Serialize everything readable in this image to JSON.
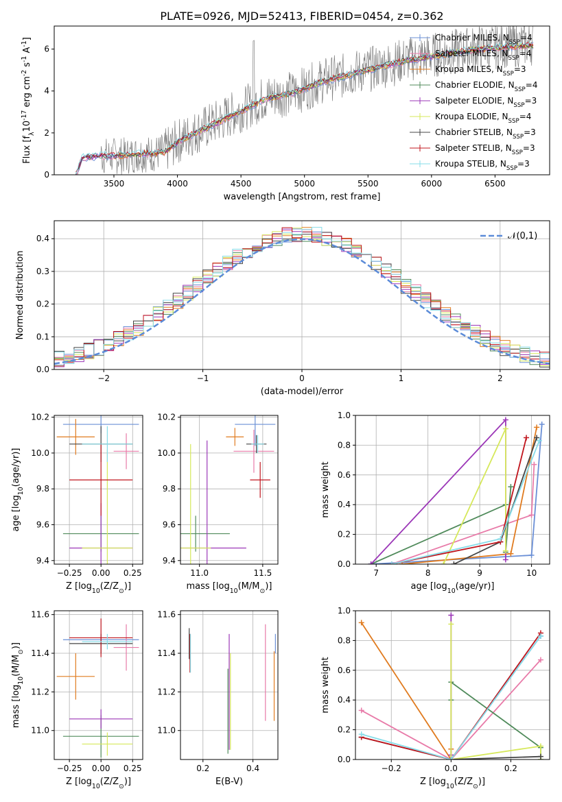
{
  "figure": {
    "title": "PLATE=0926, MJD=52413, FIBERID=0454, z=0.362"
  },
  "series": [
    {
      "name": "Chabrier MILES",
      "nssp": "4",
      "color": "#6a8fd6",
      "legend": "Chabrier MILES, N$_{SSP}$=4"
    },
    {
      "name": "Salpeter MILES",
      "nssp": "4",
      "color": "#e87aa8",
      "legend": "Salpeter MILES, N$_{SSP}$=4"
    },
    {
      "name": "Kroupa MILES",
      "nssp": "3",
      "color": "#e07b1f",
      "legend": "Kroupa MILES, N$_{SSP}$=3"
    },
    {
      "name": "Chabrier ELODIE",
      "nssp": "4",
      "color": "#4f8a5a",
      "legend": "Chabrier ELODIE, N$_{SSP}$=4"
    },
    {
      "name": "Salpeter ELODIE",
      "nssp": "3",
      "color": "#9b36b7",
      "legend": "Salpeter ELODIE, N$_{SSP}$=3"
    },
    {
      "name": "Kroupa ELODIE",
      "nssp": "4",
      "color": "#d6e85a",
      "legend": "Kroupa ELODIE, N$_{SSP}$=4"
    },
    {
      "name": "Chabrier STELIB",
      "nssp": "3",
      "color": "#444444",
      "legend": "Chabrier STELIB, N$_{SSP}$=3"
    },
    {
      "name": "Salpeter STELIB",
      "nssp": "3",
      "color": "#c0141c",
      "legend": "Salpeter STELIB, N$_{SSP}$=3"
    },
    {
      "name": "Kroupa STELIB",
      "nssp": "3",
      "color": "#86dce8",
      "legend": "Kroupa STELIB, N$_{SSP}$=3"
    }
  ],
  "chart_data": [
    {
      "id": "spectrum",
      "type": "line",
      "xlabel": "wavelength [Angstrom, rest frame]",
      "ylabel": "Flux [f$_\\lambda$10$^{-17}$ erg cm$^{-2}$ s$^{-1}$ A$^{-1}$]",
      "xlim": [
        3030,
        6930
      ],
      "ylim": [
        0,
        7.1
      ],
      "xticks": [
        3500,
        4000,
        4500,
        5000,
        5500,
        6000,
        6500
      ],
      "yticks": [
        0,
        2,
        4,
        6
      ],
      "grid": false,
      "legend": "top-right",
      "data_x": [
        3200,
        3250,
        3300,
        3400,
        3500,
        3600,
        3700,
        3800,
        3900,
        4000,
        4100,
        4200,
        4300,
        4400,
        4500,
        4600,
        4700,
        4800,
        4900,
        5000,
        5100,
        5200,
        5300,
        5400,
        5500,
        5600,
        5700,
        5800,
        5900,
        6000,
        6100,
        6200,
        6300,
        6400,
        6500,
        6600,
        6700,
        6800
      ],
      "data_y": [
        0.2,
        0.8,
        0.9,
        0.9,
        0.9,
        0.9,
        1.0,
        1.0,
        1.1,
        1.6,
        1.9,
        2.2,
        2.5,
        2.8,
        3.1,
        3.4,
        3.7,
        3.8,
        3.9,
        4.1,
        4.4,
        4.6,
        4.7,
        4.9,
        5.0,
        5.2,
        5.3,
        5.5,
        5.6,
        5.7,
        5.8,
        5.9,
        6.0,
        6.1,
        6.1,
        6.2,
        6.2,
        6.3
      ],
      "model_y": [
        0.0,
        0.8,
        0.85,
        0.9,
        0.9,
        0.95,
        1.0,
        1.0,
        1.1,
        1.55,
        1.85,
        2.15,
        2.45,
        2.75,
        3.05,
        3.35,
        3.65,
        3.75,
        3.9,
        4.1,
        4.35,
        4.55,
        4.7,
        4.85,
        5.0,
        5.15,
        5.3,
        5.45,
        5.55,
        5.65,
        5.75,
        5.85,
        5.95,
        6.0,
        6.05,
        6.1,
        6.15,
        6.2
      ]
    },
    {
      "id": "residuals",
      "type": "line",
      "xlabel": "(data-model)/error",
      "ylabel": "Normed distribution",
      "xlim": [
        -2.5,
        2.5
      ],
      "ylim": [
        0,
        0.455
      ],
      "xticks": [
        -2,
        -1,
        0,
        1,
        2
      ],
      "yticks": [
        0.0,
        0.1,
        0.2,
        0.3,
        0.4
      ],
      "grid": true,
      "legend": "top-right",
      "gaussian_label": "$\\mathcal{N}(0,1)$",
      "bin_width": 0.1
    },
    {
      "id": "age-vs-Z",
      "type": "scatter",
      "xlabel": "Z [log$_{10}$(Z/Z$_\\odot$)]",
      "ylabel": "age  [log$_{10}$(age/yr)]",
      "xlim": [
        -0.37,
        0.33
      ],
      "ylim": [
        9.38,
        10.21
      ],
      "xticks": [
        -0.25,
        0.0,
        0.25
      ],
      "xticklabels": [
        "−0.25",
        "0.00",
        "0.25"
      ],
      "yticks": [
        9.4,
        9.6,
        9.8,
        10.0,
        10.2
      ],
      "grid": true,
      "points": [
        {
          "x": 0.0,
          "xerr": 0.3,
          "y": 10.16,
          "yerr": 0.05
        },
        {
          "x": 0.2,
          "xerr": 0.1,
          "y": 10.01,
          "yerr": 0.1
        },
        {
          "x": -0.2,
          "xerr": 0.15,
          "y": 10.09,
          "yerr": 0.1
        },
        {
          "x": 0.0,
          "xerr": 0.3,
          "y": 9.55,
          "yerr": 0.1
        },
        {
          "x": 0.0,
          "xerr": 0.25,
          "y": 9.47,
          "yerr": 0.25
        },
        {
          "x": 0.05,
          "xerr": 0.2,
          "y": 9.47,
          "yerr": 0.55
        },
        {
          "x": 0.0,
          "xerr": 0.25,
          "y": 10.05,
          "yerr": 0.1
        },
        {
          "x": 0.0,
          "xerr": 0.25,
          "y": 9.85,
          "yerr": 0.2
        },
        {
          "x": 0.05,
          "xerr": 0.2,
          "y": 10.05,
          "yerr": 0.1
        }
      ]
    },
    {
      "id": "age-vs-mass",
      "type": "scatter",
      "xlabel": "mass [log$_{10}$(M/M$_\\odot$)]",
      "ylabel": "",
      "xlim": [
        10.85,
        11.62
      ],
      "ylim": [
        9.38,
        10.21
      ],
      "xticks": [
        11.0,
        11.5
      ],
      "xticklabels": [
        "11.0",
        "11.5"
      ],
      "yticks": [
        9.4,
        9.6,
        9.8,
        10.0,
        10.2
      ],
      "grid": true,
      "points": [
        {
          "x": 11.44,
          "xerr": 0.16,
          "y": 10.16,
          "yerr": 0.12
        },
        {
          "x": 11.43,
          "xerr": 0.16,
          "y": 10.01,
          "yerr": 0.12
        },
        {
          "x": 11.28,
          "xerr": 0.07,
          "y": 10.09,
          "yerr": 0.05
        },
        {
          "x": 10.97,
          "xerr": 0.27,
          "y": 9.55,
          "yerr": 0.1
        },
        {
          "x": 11.06,
          "xerr": 0.31,
          "y": 9.47,
          "yerr": 0.6
        },
        {
          "x": 10.93,
          "xerr": 0.16,
          "y": 9.47,
          "yerr": 0.58
        },
        {
          "x": 11.45,
          "xerr": 0.08,
          "y": 10.05,
          "yerr": 0.05
        },
        {
          "x": 11.48,
          "xerr": 0.08,
          "y": 9.85,
          "yerr": 0.1
        },
        {
          "x": 11.46,
          "xerr": 0.05,
          "y": 10.05,
          "yerr": 0.05
        }
      ]
    },
    {
      "id": "weight-vs-age",
      "type": "line",
      "xlabel": "age  [log$_{10}$(age/yr)]",
      "ylabel": "mass weight",
      "xlim": [
        6.6,
        10.35
      ],
      "ylim": [
        0.0,
        1.0
      ],
      "xticks": [
        7,
        8,
        9,
        10
      ],
      "yticks": [
        0.0,
        0.2,
        0.4,
        0.6,
        0.8,
        1.0
      ],
      "grid": true,
      "lines": [
        {
          "x": [
            6.9,
            10.0,
            10.2
          ],
          "y": [
            0.0,
            0.06,
            0.94
          ]
        },
        {
          "x": [
            7.3,
            10.0,
            10.05
          ],
          "y": [
            0.0,
            0.33,
            0.67
          ]
        },
        {
          "x": [
            7.5,
            9.6,
            10.1
          ],
          "y": [
            0.0,
            0.07,
            0.92
          ]
        },
        {
          "x": [
            6.9,
            9.5,
            9.5,
            9.6
          ],
          "y": [
            0.0,
            0.4,
            0.08,
            0.52
          ]
        },
        {
          "x": [
            6.9,
            9.5,
            9.5
          ],
          "y": [
            0.0,
            0.97,
            0.03
          ]
        },
        {
          "x": [
            8.3,
            9.5,
            9.5
          ],
          "y": [
            0.0,
            0.91,
            0.09
          ]
        },
        {
          "x": [
            8.5,
            9.4,
            10.1
          ],
          "y": [
            0.0,
            0.15,
            0.85
          ]
        },
        {
          "x": [
            7.3,
            9.4,
            9.9
          ],
          "y": [
            0.0,
            0.15,
            0.85
          ]
        },
        {
          "x": [
            7.3,
            9.4,
            10.15
          ],
          "y": [
            0.0,
            0.17,
            0.83
          ]
        }
      ]
    },
    {
      "id": "mass-vs-Z",
      "type": "scatter",
      "xlabel": "Z [log$_{10}$(Z/Z$_\\odot$)]",
      "ylabel": "mass [log$_{10}$(M/M$_\\odot$)]",
      "xlim": [
        -0.37,
        0.33
      ],
      "ylim": [
        10.85,
        11.62
      ],
      "xticks": [
        -0.25,
        0.0,
        0.25
      ],
      "xticklabels": [
        "−0.25",
        "0.00",
        "0.25"
      ],
      "yticks": [
        11.0,
        11.2,
        11.4,
        11.6
      ],
      "grid": true,
      "points": [
        {
          "x": 0.0,
          "xerr": 0.3,
          "y": 11.47,
          "yerr": 0.03
        },
        {
          "x": 0.2,
          "xerr": 0.1,
          "y": 11.43,
          "yerr": 0.12
        },
        {
          "x": -0.2,
          "xerr": 0.15,
          "y": 11.28,
          "yerr": 0.12
        },
        {
          "x": 0.0,
          "xerr": 0.3,
          "y": 10.97,
          "yerr": 0.11
        },
        {
          "x": 0.0,
          "xerr": 0.25,
          "y": 11.06,
          "yerr": 0.05
        },
        {
          "x": 0.05,
          "xerr": 0.2,
          "y": 10.93,
          "yerr": 0.06
        },
        {
          "x": 0.0,
          "xerr": 0.25,
          "y": 11.45,
          "yerr": 0.05
        },
        {
          "x": 0.0,
          "xerr": 0.25,
          "y": 11.48,
          "yerr": 0.1
        },
        {
          "x": 0.05,
          "xerr": 0.2,
          "y": 11.46,
          "yerr": 0.04
        }
      ]
    },
    {
      "id": "mass-vs-ebv",
      "type": "scatter",
      "xlabel": "E(B-V)",
      "ylabel": "",
      "xlim": [
        0.11,
        0.5
      ],
      "ylim": [
        10.85,
        11.62
      ],
      "xticks": [
        0.2,
        0.4
      ],
      "xticklabels": [
        "0.2",
        "0.4"
      ],
      "yticks": [
        11.0,
        11.2,
        11.4,
        11.6
      ],
      "grid": true,
      "points": [
        {
          "x": 0.49,
          "xerr": 0.0,
          "y": 11.45,
          "yerr": 0.05
        },
        {
          "x": 0.45,
          "xerr": 0.0,
          "y": 11.3,
          "yerr": 0.25
        },
        {
          "x": 0.485,
          "xerr": 0.0,
          "y": 11.23,
          "yerr": 0.18
        },
        {
          "x": 0.3,
          "xerr": 0.0,
          "y": 11.1,
          "yerr": 0.22
        },
        {
          "x": 0.305,
          "xerr": 0.0,
          "y": 11.2,
          "yerr": 0.3
        },
        {
          "x": 0.31,
          "xerr": 0.0,
          "y": 11.15,
          "yerr": 0.25
        },
        {
          "x": 0.145,
          "xerr": 0.0,
          "y": 11.45,
          "yerr": 0.08
        },
        {
          "x": 0.148,
          "xerr": 0.0,
          "y": 11.4,
          "yerr": 0.1
        },
        {
          "x": 0.15,
          "xerr": 0.0,
          "y": 11.4,
          "yerr": 0.1
        }
      ]
    },
    {
      "id": "weight-vs-Z",
      "type": "line",
      "xlabel": "Z [log$_{10}$(Z/Z$_\\odot$)]",
      "ylabel": "mass weight",
      "xlim": [
        -0.32,
        0.33
      ],
      "ylim": [
        0.0,
        1.0
      ],
      "xticks": [
        -0.2,
        0.0,
        0.2
      ],
      "xticklabels": [
        "−0.2",
        "0.0",
        "0.2"
      ],
      "yticks": [
        0.0,
        0.2,
        0.4,
        0.6,
        0.8,
        1.0
      ],
      "grid": true,
      "lines": [
        {
          "x": [
            0.3,
            0.0,
            0.3
          ],
          "y": [
            0.83,
            0.0,
            0.83
          ]
        },
        {
          "x": [
            -0.3,
            0.0,
            0.3
          ],
          "y": [
            0.33,
            0.0,
            0.67
          ]
        },
        {
          "x": [
            -0.3,
            0.0,
            0.0
          ],
          "y": [
            0.92,
            0.0,
            0.07
          ]
        },
        {
          "x": [
            0.0,
            0.0,
            0.3,
            0.3
          ],
          "y": [
            0.4,
            0.52,
            0.08,
            0.0
          ]
        },
        {
          "x": [
            0.0,
            0.0,
            0.0
          ],
          "y": [
            0.97,
            0.0,
            0.03
          ]
        },
        {
          "x": [
            0.0,
            0.0,
            0.3,
            0.3
          ],
          "y": [
            0.91,
            0.0,
            0.09,
            0.0
          ]
        },
        {
          "x": [
            -0.3,
            0.0,
            0.3
          ],
          "y": [
            0.15,
            0.0,
            0.02
          ]
        },
        {
          "x": [
            -0.3,
            0.0,
            0.3
          ],
          "y": [
            0.15,
            0.0,
            0.85
          ]
        },
        {
          "x": [
            -0.3,
            0.0,
            0.3
          ],
          "y": [
            0.17,
            0.0,
            0.83
          ]
        }
      ]
    }
  ]
}
